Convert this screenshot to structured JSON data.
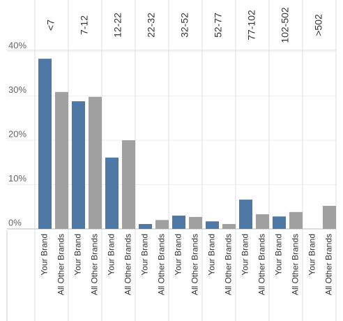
{
  "chart_data": {
    "type": "bar",
    "categories": [
      "<7",
      "7-12",
      "12-22",
      "22-32",
      "32-52",
      "52-77",
      "77-102",
      "102-502",
      ">502"
    ],
    "series": [
      {
        "name": "Your Brand",
        "color": "#4e79a7",
        "values": [
          38.4,
          28.8,
          16.1,
          1.1,
          3.0,
          1.7,
          6.6,
          2.8,
          0
        ]
      },
      {
        "name": "All Other Brands",
        "color": "#a0a0a0",
        "values": [
          30.9,
          29.8,
          20.0,
          2.0,
          2.7,
          1.1,
          3.3,
          3.8,
          5.2
        ]
      }
    ],
    "ylim": [
      0,
      40
    ],
    "yticks": [
      {
        "value": 0,
        "label": "0%"
      },
      {
        "value": 10,
        "label": "10%"
      },
      {
        "value": 20,
        "label": "20%"
      },
      {
        "value": 30,
        "label": "30%"
      },
      {
        "value": 40,
        "label": "40%"
      }
    ],
    "grid": true
  }
}
